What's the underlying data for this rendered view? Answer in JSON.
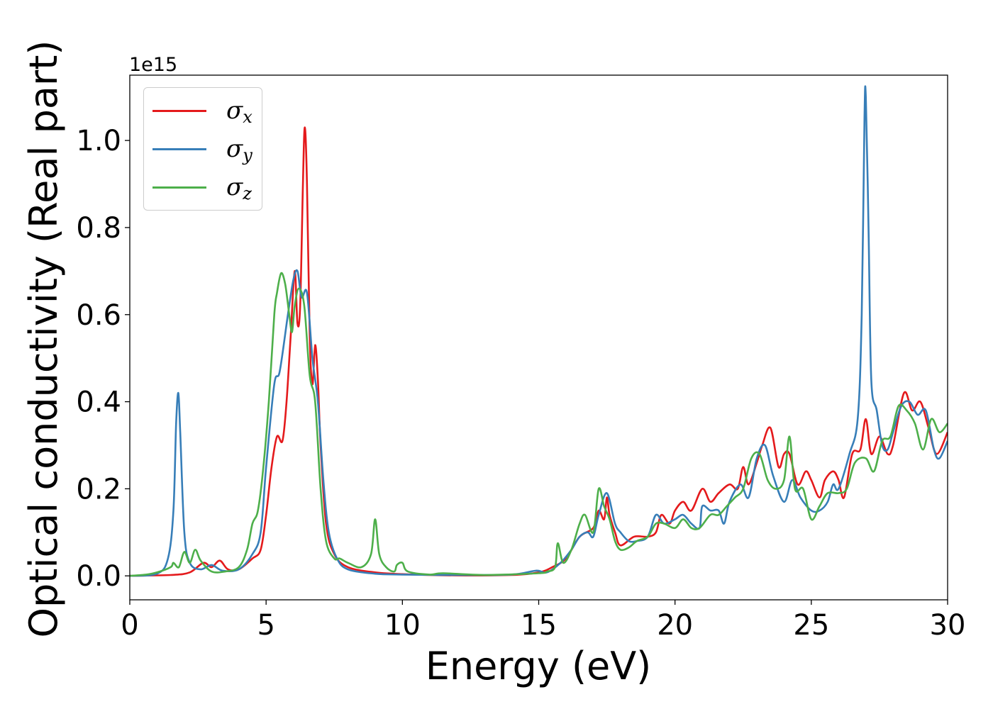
{
  "chart_data": {
    "type": "line",
    "title": "",
    "xlabel": "Energy (eV)",
    "ylabel": "Optical conductivity (Real part)",
    "offset_text": "1e15",
    "xlim": [
      0,
      30
    ],
    "ylim": [
      -0.055,
      1.15
    ],
    "xticks": [
      0,
      5,
      10,
      15,
      20,
      25,
      30
    ],
    "yticks": [
      0.0,
      0.2,
      0.4,
      0.6,
      0.8,
      1.0
    ],
    "ytick_labels": [
      "0.0",
      "0.2",
      "0.4",
      "0.6",
      "0.8",
      "1.0"
    ],
    "grid": false,
    "legend_position": "top-left",
    "series": [
      {
        "name": "σx",
        "symbol": "σ",
        "subscript": "x",
        "color": "#e41a1c",
        "points": [
          [
            0,
            0
          ],
          [
            1.5,
            0.002
          ],
          [
            2.2,
            0.008
          ],
          [
            2.7,
            0.03
          ],
          [
            3.0,
            0.02
          ],
          [
            3.3,
            0.035
          ],
          [
            3.6,
            0.015
          ],
          [
            4.0,
            0.015
          ],
          [
            4.5,
            0.04
          ],
          [
            4.8,
            0.06
          ],
          [
            5.0,
            0.14
          ],
          [
            5.2,
            0.25
          ],
          [
            5.4,
            0.32
          ],
          [
            5.6,
            0.31
          ],
          [
            5.75,
            0.4
          ],
          [
            5.9,
            0.55
          ],
          [
            6.05,
            0.7
          ],
          [
            6.15,
            0.58
          ],
          [
            6.25,
            0.62
          ],
          [
            6.35,
            0.9
          ],
          [
            6.42,
            1.03
          ],
          [
            6.5,
            0.9
          ],
          [
            6.6,
            0.55
          ],
          [
            6.7,
            0.44
          ],
          [
            6.8,
            0.53
          ],
          [
            6.9,
            0.45
          ],
          [
            7.0,
            0.3
          ],
          [
            7.2,
            0.12
          ],
          [
            7.5,
            0.05
          ],
          [
            8.0,
            0.02
          ],
          [
            9.0,
            0.008
          ],
          [
            10.0,
            0.004
          ],
          [
            12.0,
            0.001
          ],
          [
            14.0,
            0.002
          ],
          [
            15.0,
            0.008
          ],
          [
            15.5,
            0.02
          ],
          [
            16.0,
            0.04
          ],
          [
            16.5,
            0.09
          ],
          [
            17.0,
            0.11
          ],
          [
            17.2,
            0.15
          ],
          [
            17.4,
            0.13
          ],
          [
            17.5,
            0.18
          ],
          [
            17.6,
            0.14
          ],
          [
            17.8,
            0.1
          ],
          [
            18.0,
            0.07
          ],
          [
            18.5,
            0.09
          ],
          [
            19.0,
            0.09
          ],
          [
            19.3,
            0.1
          ],
          [
            19.5,
            0.14
          ],
          [
            19.8,
            0.12
          ],
          [
            20.0,
            0.15
          ],
          [
            20.3,
            0.17
          ],
          [
            20.6,
            0.15
          ],
          [
            21.0,
            0.2
          ],
          [
            21.3,
            0.17
          ],
          [
            21.6,
            0.19
          ],
          [
            22.0,
            0.21
          ],
          [
            22.3,
            0.2
          ],
          [
            22.5,
            0.25
          ],
          [
            22.7,
            0.21
          ],
          [
            23.0,
            0.26
          ],
          [
            23.2,
            0.3
          ],
          [
            23.5,
            0.34
          ],
          [
            23.8,
            0.25
          ],
          [
            24.0,
            0.28
          ],
          [
            24.2,
            0.28
          ],
          [
            24.5,
            0.21
          ],
          [
            24.8,
            0.24
          ],
          [
            25.0,
            0.22
          ],
          [
            25.3,
            0.18
          ],
          [
            25.5,
            0.22
          ],
          [
            25.8,
            0.24
          ],
          [
            26.0,
            0.22
          ],
          [
            26.2,
            0.18
          ],
          [
            26.5,
            0.28
          ],
          [
            26.8,
            0.29
          ],
          [
            27.0,
            0.36
          ],
          [
            27.2,
            0.28
          ],
          [
            27.5,
            0.32
          ],
          [
            27.8,
            0.28
          ],
          [
            28.0,
            0.3
          ],
          [
            28.4,
            0.42
          ],
          [
            28.7,
            0.38
          ],
          [
            29.0,
            0.4
          ],
          [
            29.3,
            0.34
          ],
          [
            29.6,
            0.28
          ],
          [
            30.0,
            0.33
          ]
        ]
      },
      {
        "name": "σy",
        "symbol": "σ",
        "subscript": "y",
        "color": "#377eb8",
        "points": [
          [
            0,
            0
          ],
          [
            1.0,
            0.005
          ],
          [
            1.4,
            0.04
          ],
          [
            1.6,
            0.15
          ],
          [
            1.7,
            0.35
          ],
          [
            1.78,
            0.42
          ],
          [
            1.85,
            0.33
          ],
          [
            2.0,
            0.1
          ],
          [
            2.2,
            0.03
          ],
          [
            2.6,
            0.015
          ],
          [
            3.0,
            0.025
          ],
          [
            3.4,
            0.012
          ],
          [
            4.0,
            0.015
          ],
          [
            4.5,
            0.05
          ],
          [
            4.8,
            0.1
          ],
          [
            5.0,
            0.25
          ],
          [
            5.3,
            0.44
          ],
          [
            5.5,
            0.47
          ],
          [
            5.8,
            0.6
          ],
          [
            6.0,
            0.68
          ],
          [
            6.15,
            0.7
          ],
          [
            6.3,
            0.64
          ],
          [
            6.5,
            0.65
          ],
          [
            6.7,
            0.5
          ],
          [
            6.9,
            0.4
          ],
          [
            7.1,
            0.22
          ],
          [
            7.3,
            0.1
          ],
          [
            7.6,
            0.04
          ],
          [
            8.0,
            0.015
          ],
          [
            9.0,
            0.005
          ],
          [
            10.0,
            0.003
          ],
          [
            12.0,
            0.002
          ],
          [
            14.0,
            0.003
          ],
          [
            14.9,
            0.012
          ],
          [
            15.3,
            0.008
          ],
          [
            15.8,
            0.03
          ],
          [
            16.2,
            0.06
          ],
          [
            16.5,
            0.09
          ],
          [
            16.8,
            0.1
          ],
          [
            17.0,
            0.09
          ],
          [
            17.2,
            0.14
          ],
          [
            17.5,
            0.19
          ],
          [
            17.8,
            0.12
          ],
          [
            18.0,
            0.1
          ],
          [
            18.3,
            0.08
          ],
          [
            18.6,
            0.08
          ],
          [
            19.0,
            0.09
          ],
          [
            19.3,
            0.14
          ],
          [
            19.6,
            0.12
          ],
          [
            20.0,
            0.13
          ],
          [
            20.3,
            0.14
          ],
          [
            20.6,
            0.12
          ],
          [
            20.9,
            0.11
          ],
          [
            21.0,
            0.16
          ],
          [
            21.3,
            0.15
          ],
          [
            21.6,
            0.15
          ],
          [
            21.8,
            0.12
          ],
          [
            22.0,
            0.17
          ],
          [
            22.4,
            0.21
          ],
          [
            22.7,
            0.18
          ],
          [
            23.0,
            0.27
          ],
          [
            23.3,
            0.3
          ],
          [
            23.6,
            0.23
          ],
          [
            24.0,
            0.17
          ],
          [
            24.3,
            0.22
          ],
          [
            24.6,
            0.18
          ],
          [
            25.0,
            0.15
          ],
          [
            25.3,
            0.15
          ],
          [
            25.6,
            0.17
          ],
          [
            25.8,
            0.21
          ],
          [
            26.0,
            0.2
          ],
          [
            26.4,
            0.28
          ],
          [
            26.7,
            0.36
          ],
          [
            26.85,
            0.6
          ],
          [
            26.95,
            1.05
          ],
          [
            27.0,
            1.1
          ],
          [
            27.1,
            0.8
          ],
          [
            27.2,
            0.45
          ],
          [
            27.4,
            0.38
          ],
          [
            27.6,
            0.3
          ],
          [
            27.8,
            0.29
          ],
          [
            28.0,
            0.33
          ],
          [
            28.3,
            0.39
          ],
          [
            28.6,
            0.4
          ],
          [
            28.9,
            0.37
          ],
          [
            29.2,
            0.38
          ],
          [
            29.5,
            0.29
          ],
          [
            29.7,
            0.27
          ],
          [
            30.0,
            0.31
          ]
        ]
      },
      {
        "name": "σz",
        "symbol": "σ",
        "subscript": "z",
        "color": "#4daf4a",
        "points": [
          [
            0,
            0
          ],
          [
            0.6,
            0.003
          ],
          [
            1.0,
            0.008
          ],
          [
            1.5,
            0.02
          ],
          [
            1.6,
            0.03
          ],
          [
            1.8,
            0.02
          ],
          [
            2.0,
            0.055
          ],
          [
            2.2,
            0.03
          ],
          [
            2.4,
            0.06
          ],
          [
            2.6,
            0.035
          ],
          [
            3.0,
            0.01
          ],
          [
            3.5,
            0.01
          ],
          [
            4.0,
            0.02
          ],
          [
            4.3,
            0.06
          ],
          [
            4.5,
            0.12
          ],
          [
            4.7,
            0.15
          ],
          [
            4.9,
            0.25
          ],
          [
            5.1,
            0.4
          ],
          [
            5.3,
            0.6
          ],
          [
            5.4,
            0.65
          ],
          [
            5.55,
            0.695
          ],
          [
            5.7,
            0.67
          ],
          [
            5.85,
            0.6
          ],
          [
            5.95,
            0.56
          ],
          [
            6.05,
            0.62
          ],
          [
            6.2,
            0.66
          ],
          [
            6.4,
            0.62
          ],
          [
            6.6,
            0.46
          ],
          [
            6.8,
            0.4
          ],
          [
            7.0,
            0.2
          ],
          [
            7.2,
            0.08
          ],
          [
            7.5,
            0.04
          ],
          [
            7.7,
            0.04
          ],
          [
            8.0,
            0.03
          ],
          [
            8.5,
            0.02
          ],
          [
            8.85,
            0.05
          ],
          [
            9.0,
            0.13
          ],
          [
            9.15,
            0.05
          ],
          [
            9.4,
            0.02
          ],
          [
            9.7,
            0.01
          ],
          [
            9.8,
            0.025
          ],
          [
            10.0,
            0.03
          ],
          [
            10.2,
            0.01
          ],
          [
            11.0,
            0.003
          ],
          [
            11.5,
            0.006
          ],
          [
            13.0,
            0.002
          ],
          [
            15.0,
            0.006
          ],
          [
            15.3,
            0.01
          ],
          [
            15.6,
            0.02
          ],
          [
            15.7,
            0.075
          ],
          [
            15.9,
            0.03
          ],
          [
            16.2,
            0.06
          ],
          [
            16.5,
            0.12
          ],
          [
            16.7,
            0.14
          ],
          [
            17.0,
            0.1
          ],
          [
            17.2,
            0.2
          ],
          [
            17.4,
            0.16
          ],
          [
            17.6,
            0.13
          ],
          [
            17.8,
            0.08
          ],
          [
            18.0,
            0.06
          ],
          [
            18.3,
            0.065
          ],
          [
            18.6,
            0.08
          ],
          [
            19.0,
            0.09
          ],
          [
            19.3,
            0.12
          ],
          [
            19.6,
            0.12
          ],
          [
            20.0,
            0.11
          ],
          [
            20.3,
            0.13
          ],
          [
            20.6,
            0.11
          ],
          [
            20.9,
            0.11
          ],
          [
            21.3,
            0.14
          ],
          [
            21.6,
            0.14
          ],
          [
            21.9,
            0.16
          ],
          [
            22.2,
            0.18
          ],
          [
            22.5,
            0.2
          ],
          [
            22.8,
            0.27
          ],
          [
            23.1,
            0.28
          ],
          [
            23.4,
            0.22
          ],
          [
            23.7,
            0.2
          ],
          [
            24.0,
            0.22
          ],
          [
            24.2,
            0.32
          ],
          [
            24.4,
            0.2
          ],
          [
            24.7,
            0.2
          ],
          [
            25.0,
            0.13
          ],
          [
            25.3,
            0.16
          ],
          [
            25.6,
            0.19
          ],
          [
            26.0,
            0.19
          ],
          [
            26.3,
            0.2
          ],
          [
            26.6,
            0.26
          ],
          [
            27.0,
            0.27
          ],
          [
            27.3,
            0.24
          ],
          [
            27.6,
            0.31
          ],
          [
            27.9,
            0.32
          ],
          [
            28.2,
            0.39
          ],
          [
            28.5,
            0.38
          ],
          [
            28.8,
            0.35
          ],
          [
            29.1,
            0.29
          ],
          [
            29.4,
            0.36
          ],
          [
            29.7,
            0.33
          ],
          [
            30.0,
            0.35
          ]
        ]
      }
    ]
  }
}
